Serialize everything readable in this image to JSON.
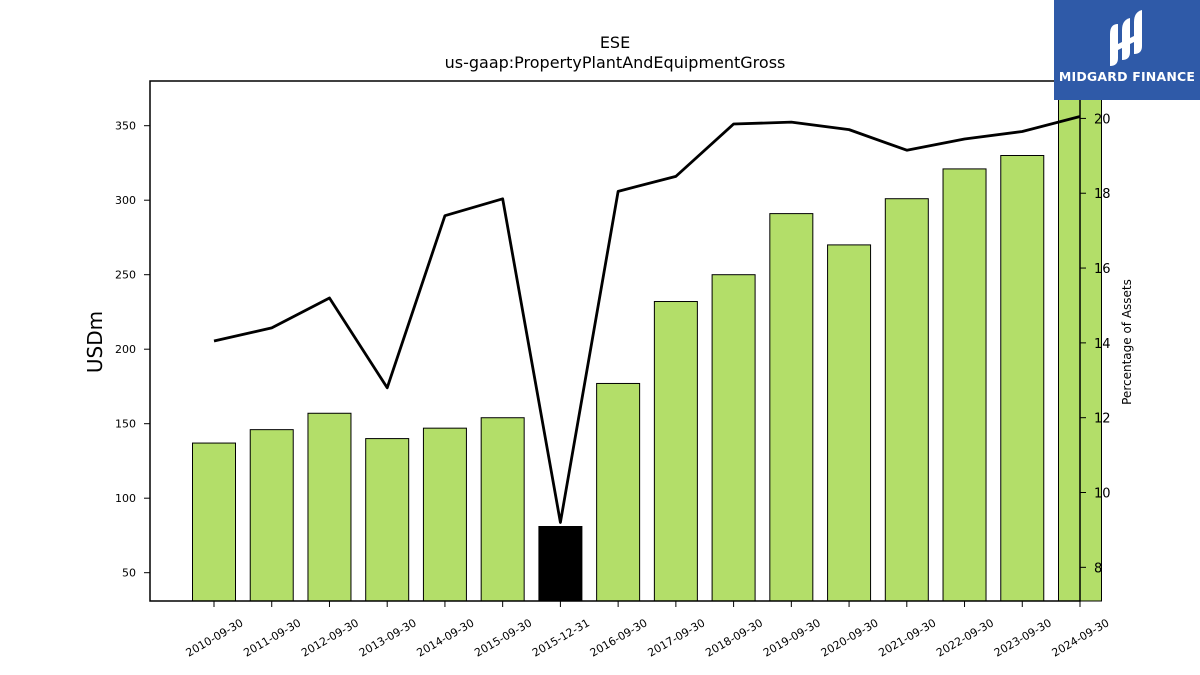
{
  "logo": {
    "text": "MIDGARD FINANCE",
    "icon": "midgard-logo-icon",
    "bg_color": "#2f5aa8"
  },
  "chart_data": {
    "type": "bar+line",
    "title": "ESE",
    "subtitle": "us-gaap:PropertyPlantAndEquipmentGross",
    "ylabel": "USDm",
    "y2label": "Percentage of Assets",
    "ylim": [
      31,
      380
    ],
    "y2lim": [
      7.1,
      21.0
    ],
    "yticks": [
      50,
      100,
      150,
      200,
      250,
      300,
      350
    ],
    "y2ticks": [
      8,
      10,
      12,
      14,
      16,
      18,
      20
    ],
    "categories": [
      "2010-09-30",
      "2011-09-30",
      "2012-09-30",
      "2013-09-30",
      "2014-09-30",
      "2015-09-30",
      "2015-12-31",
      "2016-09-30",
      "2017-09-30",
      "2018-09-30",
      "2019-09-30",
      "2020-09-30",
      "2021-09-30",
      "2022-09-30",
      "2023-09-30",
      "2024-09-30"
    ],
    "bar_values": [
      137,
      146,
      157,
      140,
      147,
      154,
      81,
      177,
      232,
      250,
      291,
      270,
      301,
      321,
      330,
      368
    ],
    "bar_colors": [
      "#b3de69",
      "#b3de69",
      "#b3de69",
      "#b3de69",
      "#b3de69",
      "#b3de69",
      "#000000",
      "#b3de69",
      "#b3de69",
      "#b3de69",
      "#b3de69",
      "#b3de69",
      "#b3de69",
      "#b3de69",
      "#b3de69",
      "#b3de69"
    ],
    "line_values": [
      14.05,
      14.4,
      15.2,
      12.8,
      17.4,
      17.85,
      9.2,
      18.05,
      18.45,
      19.85,
      19.9,
      19.7,
      19.15,
      19.45,
      19.65,
      20.05
    ],
    "line_color": "#000000",
    "grid": false
  }
}
